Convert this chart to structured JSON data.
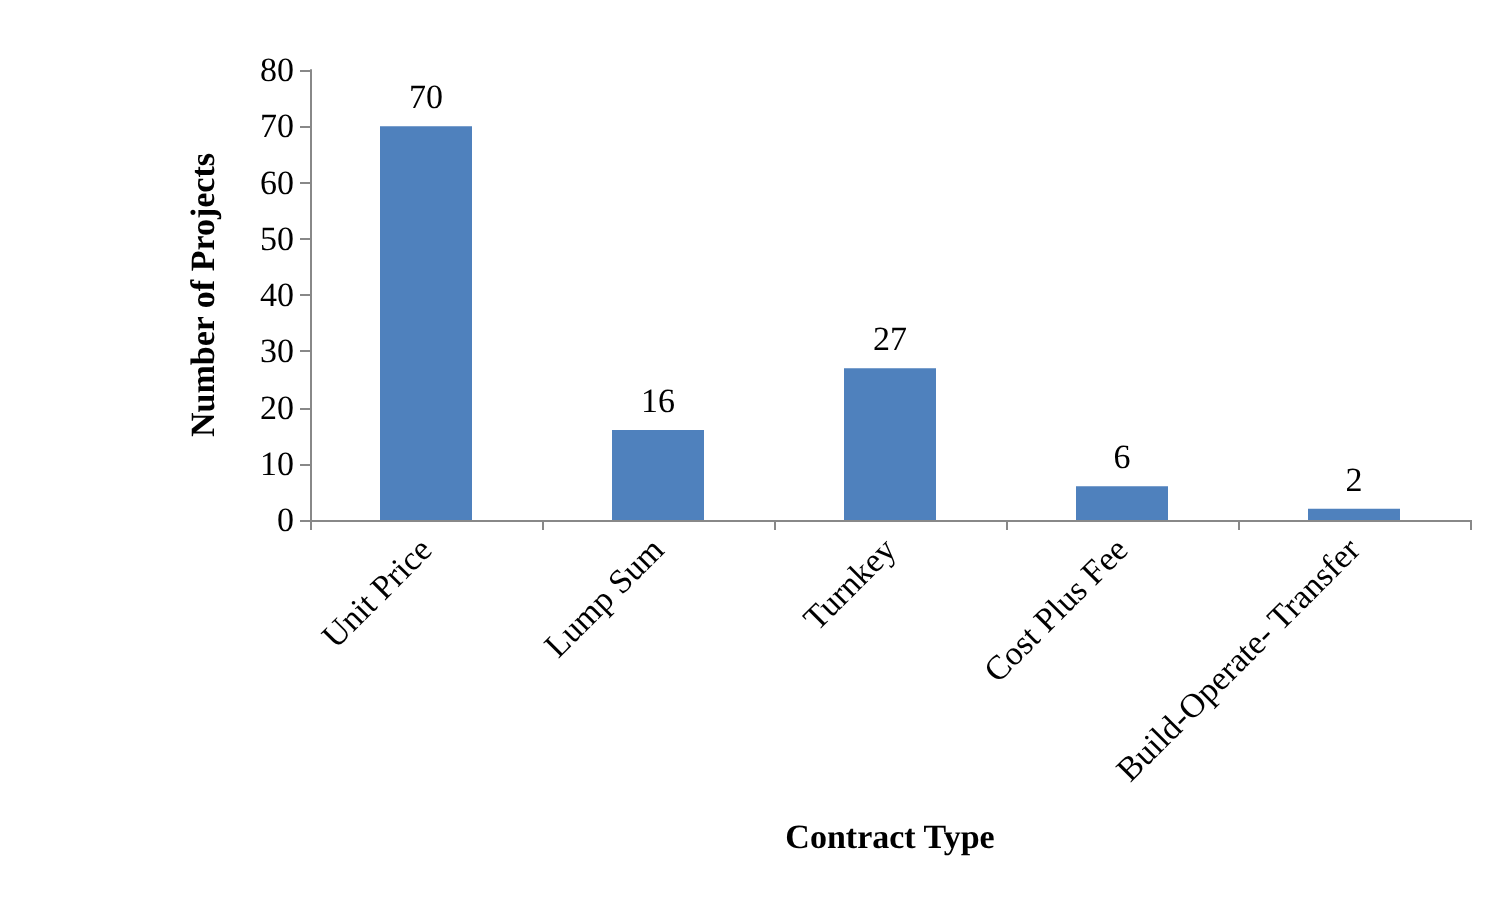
{
  "chart_data": {
    "type": "bar",
    "xlabel": "Contract Type",
    "ylabel": "Number of Projects",
    "categories": [
      "Unit Price",
      "Lump Sum",
      "Turnkey",
      "Cost Plus Fee",
      "Build-Operate- Transfer"
    ],
    "values": [
      70,
      16,
      27,
      6,
      2
    ],
    "color": "#4f81bd",
    "ylim": [
      0,
      80
    ],
    "yticks": [
      0,
      10,
      20,
      30,
      40,
      50,
      60,
      70,
      80
    ],
    "grid": false,
    "data_labels": true
  }
}
